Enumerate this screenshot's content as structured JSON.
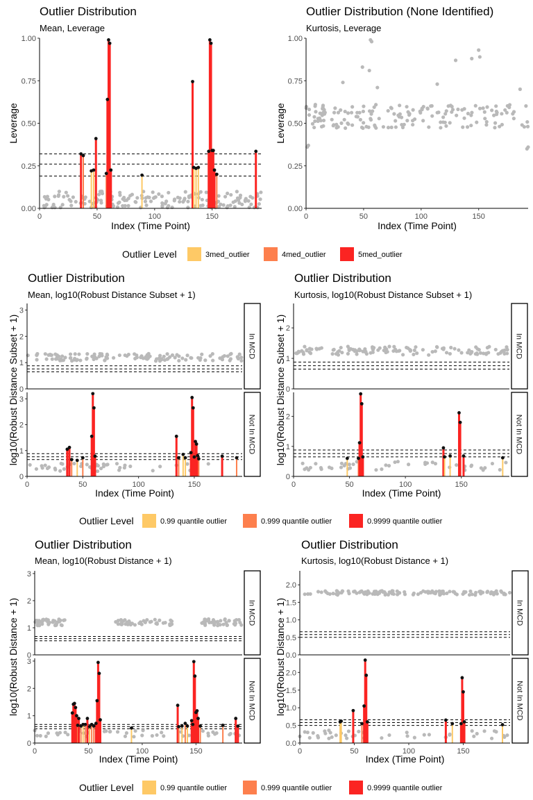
{
  "colors": {
    "c3": "#fec966",
    "c4": "#fd7f4d",
    "c5": "#fb2422",
    "point": "#b9b9b9",
    "outlier_point": "#111111"
  },
  "legends": [
    {
      "title": "Outlier Level",
      "items": [
        "3med_outlier",
        "4med_outlier",
        "5med_outlier"
      ]
    },
    {
      "title": "Outlier Level",
      "items": [
        "0.99 quantile outlier",
        "0.999 quantile outlier",
        "0.9999 quantile outlier"
      ]
    },
    {
      "title": "Outlier Level",
      "items": [
        "0.99 quantile outlier",
        "0.999 quantile outlier",
        "0.9999 quantile outlier"
      ]
    }
  ],
  "chart_data": [
    {
      "type": "scatter",
      "title": "Outlier Distribution",
      "subtitle": "Mean, Leverage",
      "xlabel": "Index (Time Point)",
      "ylabel": "Leverage",
      "xlim": [
        0,
        193
      ],
      "ylim": [
        0,
        1
      ],
      "xticks": [
        0,
        50,
        100,
        150
      ],
      "yticks": [
        0,
        0.25,
        0.5,
        0.75,
        1
      ],
      "ytick_labels": [
        "0.00",
        "0.25",
        "0.50",
        "0.75",
        "1.00"
      ],
      "thresholds": [
        0.19,
        0.26,
        0.32
      ],
      "panels": [
        {
          "label": "",
          "ylim": [
            0,
            1
          ]
        }
      ],
      "base_level": 0.05,
      "base_spread": 0.05,
      "base_seed": 11,
      "outliers": [
        {
          "x": 36,
          "y": 0.32,
          "level": 5
        },
        {
          "x": 38,
          "y": 0.31,
          "level": 4
        },
        {
          "x": 45,
          "y": 0.22,
          "level": 3
        },
        {
          "x": 47,
          "y": 0.225,
          "level": 3
        },
        {
          "x": 49,
          "y": 0.41,
          "level": 5
        },
        {
          "x": 58,
          "y": 0.205,
          "level": 4
        },
        {
          "x": 59,
          "y": 0.64,
          "level": 5
        },
        {
          "x": 60,
          "y": 0.99,
          "level": 5
        },
        {
          "x": 61,
          "y": 0.97,
          "level": 5
        },
        {
          "x": 62,
          "y": 0.225,
          "level": 5
        },
        {
          "x": 89,
          "y": 0.195,
          "level": 3
        },
        {
          "x": 133,
          "y": 0.745,
          "level": 5
        },
        {
          "x": 134,
          "y": 0.24,
          "level": 3
        },
        {
          "x": 136,
          "y": 0.235,
          "level": 3
        },
        {
          "x": 138,
          "y": 0.24,
          "level": 3
        },
        {
          "x": 147,
          "y": 0.335,
          "level": 5
        },
        {
          "x": 148,
          "y": 0.99,
          "level": 5
        },
        {
          "x": 149,
          "y": 0.97,
          "level": 5
        },
        {
          "x": 150,
          "y": 0.34,
          "level": 5
        },
        {
          "x": 151,
          "y": 0.34,
          "level": 5
        },
        {
          "x": 152,
          "y": 0.225,
          "level": 5
        },
        {
          "x": 154,
          "y": 0.2,
          "level": 4
        },
        {
          "x": 188,
          "y": 0.335,
          "level": 5
        }
      ]
    },
    {
      "type": "scatter",
      "title": "Outlier Distribution (None Identified)",
      "subtitle": "Kurtosis, Leverage",
      "xlabel": "Index (Time Point)",
      "ylabel": "Leverage",
      "xlim": [
        0,
        193
      ],
      "ylim": [
        0,
        1
      ],
      "xticks": [
        0,
        50,
        100,
        150
      ],
      "yticks": [
        0,
        0.25,
        0.5,
        0.75,
        1
      ],
      "ytick_labels": [
        "0.00",
        "0.25",
        "0.50",
        "0.75",
        "1.00"
      ],
      "thresholds": [],
      "panels": [
        {
          "label": "",
          "ylim": [
            0,
            1
          ]
        }
      ],
      "base_level": 0.54,
      "base_spread": 0.07,
      "base_seed": 23,
      "extra_points": [
        {
          "x": 1,
          "y": 0.36
        },
        {
          "x": 2,
          "y": 0.37
        },
        {
          "x": 32,
          "y": 0.74
        },
        {
          "x": 49,
          "y": 0.83
        },
        {
          "x": 55,
          "y": 0.81
        },
        {
          "x": 56,
          "y": 0.99
        },
        {
          "x": 57,
          "y": 0.98
        },
        {
          "x": 62,
          "y": 0.71
        },
        {
          "x": 114,
          "y": 0.73
        },
        {
          "x": 130,
          "y": 0.87
        },
        {
          "x": 144,
          "y": 0.88
        },
        {
          "x": 150,
          "y": 0.93
        },
        {
          "x": 151,
          "y": 0.89
        },
        {
          "x": 186,
          "y": 0.7
        },
        {
          "x": 192,
          "y": 0.35
        },
        {
          "x": 193,
          "y": 0.36
        }
      ],
      "outliers": []
    },
    {
      "type": "scatter",
      "title": "Outlier Distribution",
      "subtitle": "Mean, log10(Robust Distance Subset + 1)",
      "xlabel": "Index (Time Point)",
      "ylabel": "log10(Robust Distance Subset + 1)",
      "xlim": [
        0,
        193
      ],
      "xticks": [
        0,
        50,
        100,
        150
      ],
      "thresholds": [
        0.65,
        0.76,
        0.88
      ],
      "panels": [
        {
          "label": "In MCD",
          "ylim": [
            0,
            3.25
          ],
          "yticks": [
            0,
            1,
            2,
            3
          ]
        },
        {
          "label": "Not In MCD",
          "ylim": [
            0,
            3.25
          ],
          "yticks": [
            0,
            1,
            2,
            3
          ]
        }
      ],
      "in_level": 1.2,
      "in_spread": 0.14,
      "in_seed": 31,
      "not_level": 0.35,
      "not_spread": 0.15,
      "not_seed": 37,
      "outliers": [
        {
          "x": 36,
          "y": 1.05,
          "level": 5
        },
        {
          "x": 38,
          "y": 1.12,
          "level": 5
        },
        {
          "x": 40,
          "y": 0.65,
          "level": 4
        },
        {
          "x": 45,
          "y": 0.62,
          "level": 3
        },
        {
          "x": 50,
          "y": 0.72,
          "level": 4
        },
        {
          "x": 58,
          "y": 1.55,
          "level": 5
        },
        {
          "x": 59,
          "y": 3.2,
          "level": 5
        },
        {
          "x": 60,
          "y": 2.65,
          "level": 5
        },
        {
          "x": 61,
          "y": 0.78,
          "level": 5
        },
        {
          "x": 134,
          "y": 1.55,
          "level": 5
        },
        {
          "x": 136,
          "y": 0.72,
          "level": 4
        },
        {
          "x": 140,
          "y": 0.85,
          "level": 3
        },
        {
          "x": 142,
          "y": 0.72,
          "level": 3
        },
        {
          "x": 147,
          "y": 0.92,
          "level": 5
        },
        {
          "x": 148,
          "y": 3.05,
          "level": 5
        },
        {
          "x": 149,
          "y": 2.65,
          "level": 5
        },
        {
          "x": 150,
          "y": 0.75,
          "level": 5
        },
        {
          "x": 151,
          "y": 1.35,
          "level": 5
        },
        {
          "x": 152,
          "y": 1.25,
          "level": 5
        },
        {
          "x": 153,
          "y": 0.8,
          "level": 5
        },
        {
          "x": 154,
          "y": 0.68,
          "level": 4
        },
        {
          "x": 175,
          "y": 0.78,
          "level": 5
        },
        {
          "x": 188,
          "y": 0.72,
          "level": 4
        }
      ]
    },
    {
      "type": "scatter",
      "title": "Outlier Distribution",
      "subtitle": "Kurtosis, log10(Robust Distance Subset + 1)",
      "xlabel": "Index (Time Point)",
      "ylabel": "log10(Robust Distance Subset + 1)",
      "xlim": [
        0,
        193
      ],
      "xticks": [
        0,
        50,
        100,
        150
      ],
      "thresholds": [
        0.65,
        0.76,
        0.88
      ],
      "panels": [
        {
          "label": "In MCD",
          "ylim": [
            0,
            2.8
          ],
          "yticks": [
            0,
            1,
            2
          ]
        },
        {
          "label": "Not In MCD",
          "ylim": [
            0,
            2.8
          ],
          "yticks": [
            0,
            1,
            2
          ]
        }
      ],
      "in_level": 1.25,
      "in_spread": 0.14,
      "in_seed": 41,
      "not_level": 0.35,
      "not_spread": 0.15,
      "not_seed": 43,
      "outliers": [
        {
          "x": 48,
          "y": 0.6,
          "level": 3
        },
        {
          "x": 58,
          "y": 0.6,
          "level": 4
        },
        {
          "x": 59,
          "y": 1.12,
          "level": 5
        },
        {
          "x": 60,
          "y": 2.75,
          "level": 5
        },
        {
          "x": 61,
          "y": 2.42,
          "level": 5
        },
        {
          "x": 62,
          "y": 0.65,
          "level": 5
        },
        {
          "x": 134,
          "y": 0.95,
          "level": 5
        },
        {
          "x": 135,
          "y": 0.65,
          "level": 3
        },
        {
          "x": 140,
          "y": 0.68,
          "level": 3
        },
        {
          "x": 148,
          "y": 2.12,
          "level": 5
        },
        {
          "x": 149,
          "y": 1.8,
          "level": 5
        },
        {
          "x": 152,
          "y": 0.68,
          "level": 5
        },
        {
          "x": 187,
          "y": 0.62,
          "level": 3
        }
      ]
    },
    {
      "type": "scatter",
      "title": "Outlier Distribution",
      "subtitle": "Mean, log10(Robust Distance + 1)",
      "xlabel": "Index (Time Point)",
      "ylabel": "log10(Robust Distance + 1)",
      "xlim": [
        0,
        193
      ],
      "xticks": [
        0,
        50,
        100,
        150
      ],
      "thresholds": [
        0.52,
        0.6,
        0.68
      ],
      "panels": [
        {
          "label": "In MCD",
          "ylim": [
            0,
            3.1
          ],
          "yticks": [
            0,
            1,
            2,
            3
          ]
        },
        {
          "label": "Not In MCD",
          "ylim": [
            0,
            3.1
          ],
          "yticks": [
            0,
            1,
            2,
            3
          ]
        }
      ],
      "in_level": 1.2,
      "in_spread": 0.12,
      "in_seed": 53,
      "in_ranges": [
        [
          0,
          30
        ],
        [
          75,
          130
        ],
        [
          155,
          193
        ]
      ],
      "not_level": 0.35,
      "not_spread": 0.12,
      "not_seed": 59,
      "outliers": [
        {
          "x": 35,
          "y": 1.1,
          "level": 5
        },
        {
          "x": 36,
          "y": 1.42,
          "level": 5
        },
        {
          "x": 37,
          "y": 1.45,
          "level": 5
        },
        {
          "x": 38,
          "y": 1.3,
          "level": 5
        },
        {
          "x": 39,
          "y": 1.0,
          "level": 5
        },
        {
          "x": 40,
          "y": 0.65,
          "level": 4
        },
        {
          "x": 41,
          "y": 0.9,
          "level": 5
        },
        {
          "x": 43,
          "y": 0.62,
          "level": 4
        },
        {
          "x": 45,
          "y": 0.68,
          "level": 3
        },
        {
          "x": 47,
          "y": 0.68,
          "level": 4
        },
        {
          "x": 49,
          "y": 0.9,
          "level": 5
        },
        {
          "x": 51,
          "y": 0.6,
          "level": 3
        },
        {
          "x": 53,
          "y": 0.68,
          "level": 4
        },
        {
          "x": 55,
          "y": 0.62,
          "level": 4
        },
        {
          "x": 57,
          "y": 0.72,
          "level": 5
        },
        {
          "x": 58,
          "y": 1.55,
          "level": 5
        },
        {
          "x": 59,
          "y": 2.95,
          "level": 5
        },
        {
          "x": 60,
          "y": 2.55,
          "level": 5
        },
        {
          "x": 61,
          "y": 0.85,
          "level": 5
        },
        {
          "x": 90,
          "y": 0.55,
          "level": 3
        },
        {
          "x": 133,
          "y": 1.38,
          "level": 5
        },
        {
          "x": 134,
          "y": 0.6,
          "level": 4
        },
        {
          "x": 137,
          "y": 0.62,
          "level": 3
        },
        {
          "x": 140,
          "y": 0.72,
          "level": 4
        },
        {
          "x": 142,
          "y": 0.62,
          "level": 3
        },
        {
          "x": 146,
          "y": 0.82,
          "level": 5
        },
        {
          "x": 147,
          "y": 0.68,
          "level": 5
        },
        {
          "x": 148,
          "y": 2.98,
          "level": 5
        },
        {
          "x": 149,
          "y": 2.45,
          "level": 5
        },
        {
          "x": 150,
          "y": 1.12,
          "level": 5
        },
        {
          "x": 151,
          "y": 1.18,
          "level": 5
        },
        {
          "x": 152,
          "y": 0.9,
          "level": 5
        },
        {
          "x": 154,
          "y": 0.62,
          "level": 4
        },
        {
          "x": 175,
          "y": 0.65,
          "level": 4
        },
        {
          "x": 187,
          "y": 0.9,
          "level": 5
        },
        {
          "x": 189,
          "y": 0.62,
          "level": 5
        }
      ]
    },
    {
      "type": "scatter",
      "title": "Outlier Distribution",
      "subtitle": "Kurtosis, log10(Robust Distance + 1)",
      "xlabel": "Index (Time Point)",
      "ylabel": "log10(Robust Distance + 1)",
      "xlim": [
        0,
        193
      ],
      "xticks": [
        0,
        50,
        100,
        150
      ],
      "thresholds": [
        0.5,
        0.58,
        0.66
      ],
      "panels": [
        {
          "label": "In MCD",
          "ylim": [
            0,
            2.4
          ],
          "yticks": [
            0,
            0.5,
            1,
            1.5,
            2
          ],
          "ytick_labels": [
            "0.0",
            "0.5",
            "1.0",
            "1.5",
            "2.0"
          ]
        },
        {
          "label": "Not In MCD",
          "ylim": [
            0,
            2.4
          ],
          "yticks": [
            0,
            0.5,
            1,
            1.5,
            2
          ],
          "ytick_labels": [
            "0.0",
            "0.5",
            "1.0",
            "1.5",
            "2.0"
          ]
        }
      ],
      "in_level": 1.77,
      "in_spread": 0.06,
      "in_seed": 61,
      "not_level": 0.25,
      "not_spread": 0.12,
      "not_seed": 67,
      "outliers": [
        {
          "x": 37,
          "y": 0.6,
          "level": 3
        },
        {
          "x": 38,
          "y": 0.62,
          "level": 3
        },
        {
          "x": 49,
          "y": 0.92,
          "level": 5
        },
        {
          "x": 57,
          "y": 0.55,
          "level": 4
        },
        {
          "x": 59,
          "y": 1.05,
          "level": 5
        },
        {
          "x": 60,
          "y": 2.35,
          "level": 5
        },
        {
          "x": 61,
          "y": 1.92,
          "level": 5
        },
        {
          "x": 62,
          "y": 0.6,
          "level": 5
        },
        {
          "x": 134,
          "y": 0.65,
          "level": 5
        },
        {
          "x": 140,
          "y": 0.55,
          "level": 3
        },
        {
          "x": 148,
          "y": 0.55,
          "level": 5
        },
        {
          "x": 149,
          "y": 1.85,
          "level": 5
        },
        {
          "x": 150,
          "y": 1.45,
          "level": 5
        },
        {
          "x": 151,
          "y": 0.6,
          "level": 5
        },
        {
          "x": 186,
          "y": 0.52,
          "level": 3
        }
      ]
    }
  ]
}
